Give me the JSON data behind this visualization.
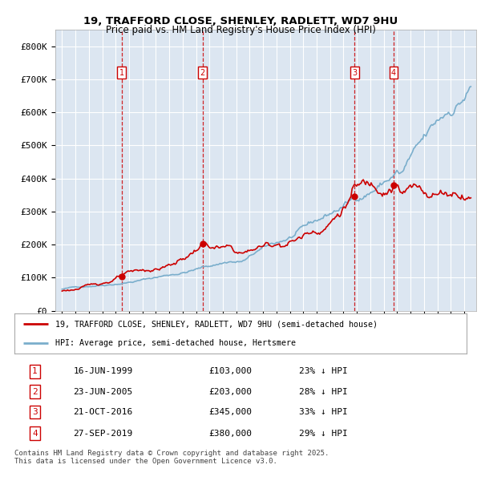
{
  "title_line1": "19, TRAFFORD CLOSE, SHENLEY, RADLETT, WD7 9HU",
  "title_line2": "Price paid vs. HM Land Registry's House Price Index (HPI)",
  "background_color": "#ffffff",
  "plot_bg_color": "#dce6f1",
  "grid_color": "#ffffff",
  "red_line_color": "#cc0000",
  "blue_line_color": "#7aaecc",
  "sale_points": [
    {
      "label": "1",
      "date_num": 1999.46,
      "price": 103000
    },
    {
      "label": "2",
      "date_num": 2005.48,
      "price": 203000
    },
    {
      "label": "3",
      "date_num": 2016.81,
      "price": 345000
    },
    {
      "label": "4",
      "date_num": 2019.74,
      "price": 380000
    }
  ],
  "vline_dates": [
    1999.46,
    2005.48,
    2016.81,
    2019.74
  ],
  "table_rows": [
    {
      "num": "1",
      "date": "16-JUN-1999",
      "price": "£103,000",
      "pct": "23% ↓ HPI"
    },
    {
      "num": "2",
      "date": "23-JUN-2005",
      "price": "£203,000",
      "pct": "28% ↓ HPI"
    },
    {
      "num": "3",
      "date": "21-OCT-2016",
      "price": "£345,000",
      "pct": "33% ↓ HPI"
    },
    {
      "num": "4",
      "date": "27-SEP-2019",
      "price": "£380,000",
      "pct": "29% ↓ HPI"
    }
  ],
  "legend_red": "19, TRAFFORD CLOSE, SHENLEY, RADLETT, WD7 9HU (semi-detached house)",
  "legend_blue": "HPI: Average price, semi-detached house, Hertsmere",
  "footnote": "Contains HM Land Registry data © Crown copyright and database right 2025.\nThis data is licensed under the Open Government Licence v3.0.",
  "ylim": [
    0,
    850000
  ],
  "yticks": [
    0,
    100000,
    200000,
    300000,
    400000,
    500000,
    600000,
    700000,
    800000
  ],
  "ytick_labels": [
    "£0",
    "£100K",
    "£200K",
    "£300K",
    "£400K",
    "£500K",
    "£600K",
    "£700K",
    "£800K"
  ],
  "xlim_start": 1994.5,
  "xlim_end": 2025.9
}
